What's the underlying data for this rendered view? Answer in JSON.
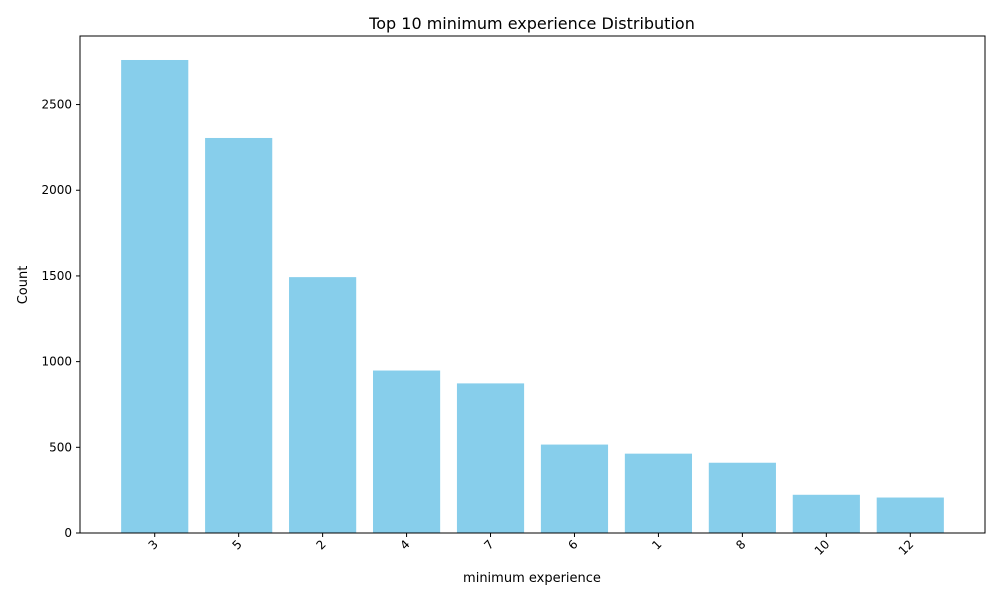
{
  "chart_data": {
    "type": "bar",
    "title": "Top 10 minimum experience Distribution",
    "xlabel": "minimum experience",
    "ylabel": "Count",
    "categories": [
      "3",
      "5",
      "2",
      "4",
      "7",
      "6",
      "1",
      "8",
      "10",
      "12"
    ],
    "values": [
      2760,
      2305,
      1493,
      948,
      873,
      516,
      463,
      410,
      223,
      207
    ],
    "ylim": [
      0,
      2900
    ],
    "yticks": [
      0,
      500,
      1000,
      1500,
      2000,
      2500
    ],
    "ytick_labels": [
      "0",
      "500",
      "1000",
      "1500",
      "2000",
      "2500"
    ],
    "bar_color": "#87CEEB",
    "grid": false,
    "legend": "none",
    "xtick_rotation": 45
  }
}
